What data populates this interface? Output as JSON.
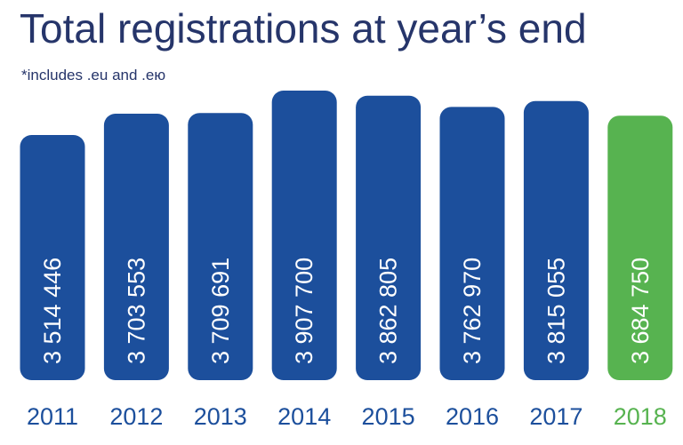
{
  "chart_data": {
    "type": "bar",
    "title": "Total registrations at year’s end",
    "subtitle": "*includes .eu and .ею",
    "categories": [
      "2011",
      "2012",
      "2013",
      "2014",
      "2015",
      "2016",
      "2017",
      "2018"
    ],
    "values": [
      3514446,
      3703553,
      3709691,
      3907700,
      3862805,
      3762970,
      3815055,
      3684750
    ],
    "value_labels": [
      "3 514 446",
      "3 703 553",
      "3 709 691",
      "3 907 700",
      "3 862 805",
      "3 762 970",
      "3 815 055",
      "3 684 750"
    ],
    "bar_colors": [
      "#1c4f9c",
      "#1c4f9c",
      "#1c4f9c",
      "#1c4f9c",
      "#1c4f9c",
      "#1c4f9c",
      "#1c4f9c",
      "#57b350"
    ],
    "category_label_colors": [
      "#1c4f9c",
      "#1c4f9c",
      "#1c4f9c",
      "#1c4f9c",
      "#1c4f9c",
      "#1c4f9c",
      "#1c4f9c",
      "#57b350"
    ],
    "value_label_color": "#ffffff",
    "gridlines": false,
    "axes_visible": false,
    "legend": "none"
  }
}
